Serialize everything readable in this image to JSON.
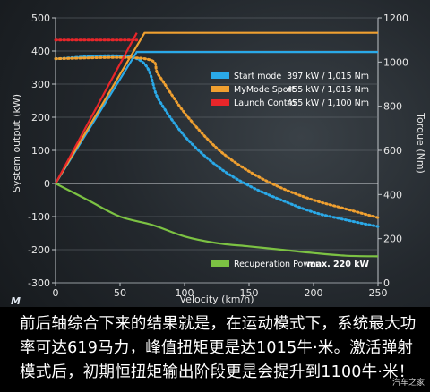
{
  "chart_data": {
    "type": "line",
    "xlabel": "Velocity (km/h)",
    "ylabel_left": "System output (kW)",
    "ylabel_right": "Torque (Nm)",
    "xlim": [
      0,
      250
    ],
    "ylim_left": [
      -300,
      500
    ],
    "ylim_right": [
      0,
      1200
    ],
    "x_ticks": [
      "0",
      "50",
      "100",
      "150",
      "200",
      "250"
    ],
    "y_left_ticks": [
      "500",
      "400",
      "300",
      "200",
      "100",
      "0",
      "-100",
      "-200",
      "-300"
    ],
    "y_right_ticks": [
      "1200",
      "1000",
      "800",
      "600",
      "400",
      "200",
      "0"
    ],
    "series": [
      {
        "name": "Start mode",
        "value_label": "397 kW / 1,015 Nm",
        "color": "#2aa9e8",
        "power_kw": {
          "x": [
            0,
            63,
            250
          ],
          "y": [
            0,
            397,
            397
          ]
        },
        "torque_nm": {
          "x": [
            0,
            63,
            80,
            100,
            125,
            150,
            175,
            200,
            225,
            250
          ],
          "y": [
            1015,
            1015,
            830,
            665,
            530,
            440,
            375,
            320,
            285,
            255
          ]
        }
      },
      {
        "name": "MyMode Sport",
        "value_label": "455 kW / 1,015 Nm",
        "color": "#f0a030",
        "power_kw": {
          "x": [
            0,
            69,
            250
          ],
          "y": [
            0,
            455,
            455
          ]
        },
        "torque_nm": {
          "x": [
            0,
            69,
            80,
            100,
            125,
            150,
            175,
            200,
            225,
            250
          ],
          "y": [
            1015,
            1015,
            940,
            770,
            610,
            505,
            430,
            375,
            335,
            295
          ]
        }
      },
      {
        "name": "Launch Control",
        "value_label": "455 kW / 1,100 Nm",
        "color": "#e8262a",
        "power_kw": {
          "x": [
            0,
            63
          ],
          "y": [
            0,
            455
          ]
        },
        "torque_nm": {
          "x": [
            0,
            63
          ],
          "y": [
            1100,
            1100
          ]
        }
      },
      {
        "name": "Recuperation Power:",
        "value_label": "max. 220 kW",
        "color": "#7cc243",
        "power_kw": {
          "x": [
            0,
            25,
            50,
            75,
            100,
            125,
            150,
            175,
            200,
            225,
            250
          ],
          "y": [
            0,
            -50,
            -100,
            -125,
            -160,
            -180,
            -190,
            -200,
            -210,
            -218,
            -220
          ]
        }
      }
    ]
  },
  "caption": "前后轴综合下来的结果就是，在运动模式下，系统最大功率可达619马力，峰值扭矩更是达1015牛·米。激活弹射模式后，初期恒扭矩输出阶段更是会提升到1100牛·米！",
  "watermark": "汽车之家",
  "logo_text": "M"
}
